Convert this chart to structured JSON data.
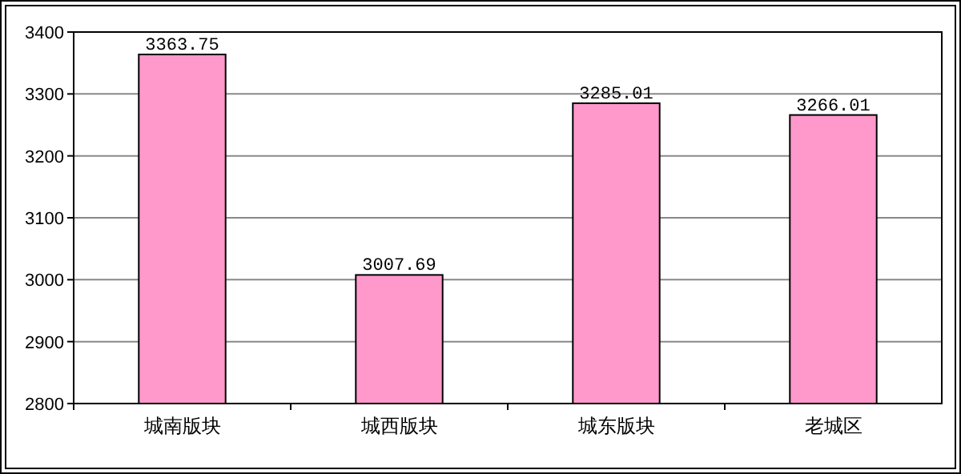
{
  "chart_data": {
    "type": "bar",
    "categories": [
      "城南版块",
      "城西版块",
      "城东版块",
      "老城区"
    ],
    "values": [
      3363.75,
      3007.69,
      3285.01,
      3266.01
    ],
    "color": "#ff99cc",
    "ylim": [
      2800,
      3400
    ],
    "yticks": [
      2800,
      2900,
      3000,
      3100,
      3200,
      3300,
      3400
    ],
    "grid": "y",
    "data_labels": true
  }
}
